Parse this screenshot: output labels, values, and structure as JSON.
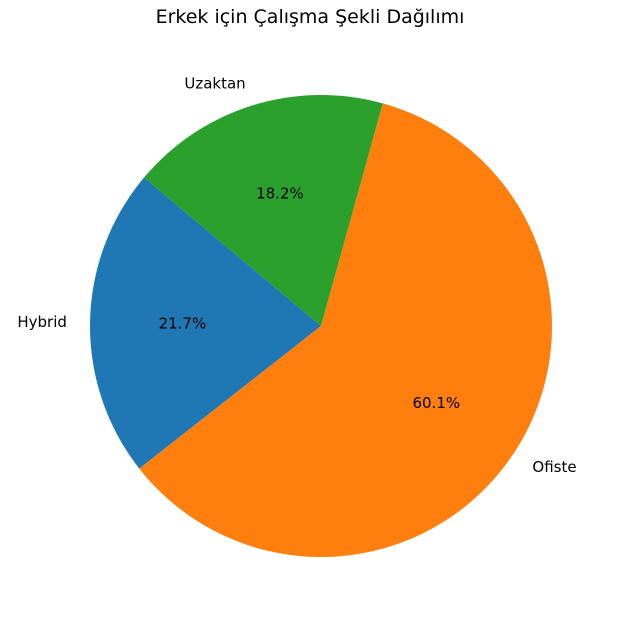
{
  "chart_data": {
    "type": "pie",
    "title": "Erkek için Çalışma Şekli Dağılımı",
    "labels": [
      "Hybrid",
      "Ofiste",
      "Uzaktan"
    ],
    "values": [
      21.7,
      60.1,
      18.2
    ],
    "value_labels": [
      "21.7%",
      "60.1%",
      "18.2%"
    ],
    "colors": [
      "#1f77b4",
      "#ff7f0e",
      "#2ca02c"
    ],
    "start_angle_deg": 140,
    "direction": "counterclockwise"
  }
}
